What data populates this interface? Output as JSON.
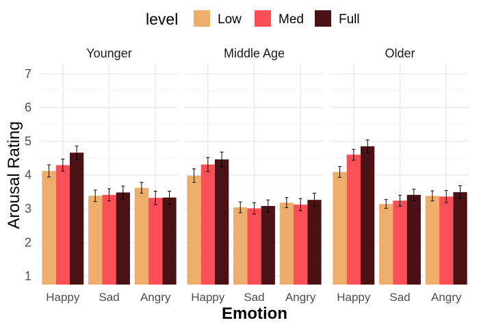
{
  "chart_data": {
    "type": "bar",
    "xlabel": "Emotion",
    "ylabel": "Arousal Rating",
    "legend": {
      "title": "level",
      "position": "top"
    },
    "levels": [
      "Low",
      "Med",
      "Full"
    ],
    "colors": {
      "Low": "#EDAE6B",
      "Med": "#FB4F57",
      "Full": "#4A1215"
    },
    "categories": [
      "Happy",
      "Sad",
      "Angry"
    ],
    "ylim": [
      0.75,
      7.3
    ],
    "yticks": [
      1,
      2,
      3,
      4,
      5,
      6,
      7
    ],
    "grid": true,
    "facets": [
      {
        "label": "Younger",
        "series": [
          {
            "name": "Low",
            "values": [
              4.12,
              3.38,
              3.62
            ],
            "errors": [
              0.18,
              0.17,
              0.16
            ]
          },
          {
            "name": "Med",
            "values": [
              4.29,
              3.41,
              3.32
            ],
            "errors": [
              0.18,
              0.18,
              0.2
            ]
          },
          {
            "name": "Full",
            "values": [
              4.66,
              3.48,
              3.33
            ],
            "errors": [
              0.2,
              0.19,
              0.19
            ]
          }
        ]
      },
      {
        "label": "Middle Age",
        "series": [
          {
            "name": "Low",
            "values": [
              3.98,
              3.04,
              3.18
            ],
            "errors": [
              0.2,
              0.16,
              0.15
            ]
          },
          {
            "name": "Med",
            "values": [
              4.31,
              3.01,
              3.12
            ],
            "errors": [
              0.21,
              0.17,
              0.18
            ]
          },
          {
            "name": "Full",
            "values": [
              4.46,
              3.08,
              3.26
            ],
            "errors": [
              0.22,
              0.18,
              0.2
            ]
          }
        ]
      },
      {
        "label": "Older",
        "series": [
          {
            "name": "Low",
            "values": [
              4.09,
              3.14,
              3.38
            ],
            "errors": [
              0.16,
              0.13,
              0.15
            ]
          },
          {
            "name": "Med",
            "values": [
              4.6,
              3.24,
              3.36
            ],
            "errors": [
              0.16,
              0.16,
              0.18
            ]
          },
          {
            "name": "Full",
            "values": [
              4.85,
              3.41,
              3.49
            ],
            "errors": [
              0.19,
              0.17,
              0.19
            ]
          }
        ]
      }
    ]
  }
}
